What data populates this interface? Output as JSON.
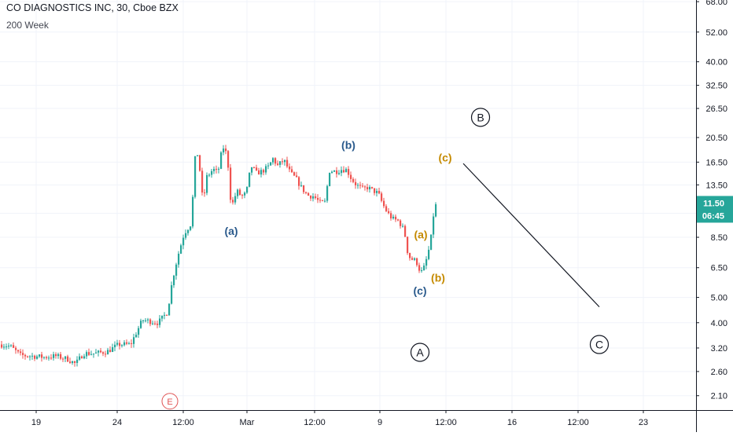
{
  "header": {
    "title": "CO DIAGNOSTICS INC, 30, Cboe BZX",
    "subtitle": "200 Week"
  },
  "colors": {
    "up": "#26a69a",
    "down": "#ef5350",
    "grid": "#f0f3fa",
    "axis_text": "#131722",
    "wave_blue": "#2a5a8c",
    "wave_orange": "#c58a00",
    "price_tag": "#26a69a",
    "event_marker": "#e05555"
  },
  "chart_data": {
    "type": "candlestick",
    "scale": "log",
    "ylim": [
      1.85,
      69
    ],
    "y_ticks": [
      "68.00",
      "52.00",
      "40.00",
      "32.50",
      "26.50",
      "20.50",
      "16.50",
      "13.50",
      "10.50",
      "8.50",
      "6.50",
      "5.00",
      "4.00",
      "3.20",
      "2.60",
      "2.10"
    ],
    "x_ticks": [
      "19",
      "24",
      "12:00",
      "Mar",
      "12:00",
      "9",
      "12:00",
      "16",
      "12:00",
      "23"
    ],
    "price_last": "11.50",
    "countdown": "06:45",
    "candles_close_path": [
      [
        0,
        3.3
      ],
      [
        12,
        3.25
      ],
      [
        25,
        3.0
      ],
      [
        40,
        2.98
      ],
      [
        55,
        2.95
      ],
      [
        70,
        2.98
      ],
      [
        85,
        2.9
      ],
      [
        95,
        2.78
      ],
      [
        105,
        3.05
      ],
      [
        120,
        3.05
      ],
      [
        135,
        3.1
      ],
      [
        150,
        3.3
      ],
      [
        165,
        3.3
      ],
      [
        180,
        4.1
      ],
      [
        200,
        4.0
      ],
      [
        212,
        4.4
      ],
      [
        218,
        5.8
      ],
      [
        225,
        7.2
      ],
      [
        233,
        8.8
      ],
      [
        242,
        9.6
      ],
      [
        248,
        19.0
      ],
      [
        252,
        16.5
      ],
      [
        257,
        11.5
      ],
      [
        262,
        14.5
      ],
      [
        270,
        15.5
      ],
      [
        276,
        15.0
      ],
      [
        282,
        19.0
      ],
      [
        288,
        17.5
      ],
      [
        293,
        11.0
      ],
      [
        300,
        12.8
      ],
      [
        306,
        12.2
      ],
      [
        312,
        12.5
      ],
      [
        318,
        16.0
      ],
      [
        325,
        15.0
      ],
      [
        332,
        15.2
      ],
      [
        340,
        15.8
      ],
      [
        346,
        17.0
      ],
      [
        352,
        16.0
      ],
      [
        360,
        16.8
      ],
      [
        368,
        15.0
      ],
      [
        375,
        14.3
      ],
      [
        382,
        13.2
      ],
      [
        390,
        12.3
      ],
      [
        398,
        12.2
      ],
      [
        406,
        11.5
      ],
      [
        412,
        11.6
      ],
      [
        418,
        15.3
      ],
      [
        426,
        15.2
      ],
      [
        434,
        15.5
      ],
      [
        440,
        15.4
      ],
      [
        446,
        14.2
      ],
      [
        452,
        13.5
      ],
      [
        460,
        13.0
      ],
      [
        466,
        13.2
      ],
      [
        474,
        12.8
      ],
      [
        480,
        12.5
      ],
      [
        486,
        11.3
      ],
      [
        492,
        10.5
      ],
      [
        498,
        10.0
      ],
      [
        506,
        9.8
      ],
      [
        513,
        9.0
      ],
      [
        518,
        7.2
      ],
      [
        523,
        7.0
      ],
      [
        528,
        6.9
      ],
      [
        534,
        6.2
      ],
      [
        538,
        6.5
      ],
      [
        543,
        7.3
      ],
      [
        547,
        8.5
      ],
      [
        551,
        11.0
      ],
      [
        555,
        11.5
      ]
    ],
    "annotations": [
      {
        "label": "(a)",
        "color": "blue",
        "x": 294,
        "y": 9.0
      },
      {
        "label": "(b)",
        "color": "blue",
        "x": 443,
        "y": 19.2
      },
      {
        "label": "(c)",
        "color": "blue",
        "x": 534,
        "y": 5.3
      },
      {
        "label": "(a)",
        "color": "orange",
        "x": 535,
        "y": 8.7
      },
      {
        "label": "(b)",
        "color": "orange",
        "x": 557,
        "y": 5.95
      },
      {
        "label": "(c)",
        "color": "orange",
        "x": 566,
        "y": 17.2
      }
    ],
    "circled_labels": [
      {
        "label": "A",
        "x": 534,
        "y": 3.08
      },
      {
        "label": "B",
        "x": 611,
        "y": 24.5
      },
      {
        "label": "C",
        "x": 762,
        "y": 3.3
      }
    ],
    "event_marker": {
      "label": "E",
      "x": 216,
      "y": 2.0
    },
    "projection_line": {
      "from": [
        589,
        16.3
      ],
      "to": [
        762,
        4.6
      ]
    }
  }
}
